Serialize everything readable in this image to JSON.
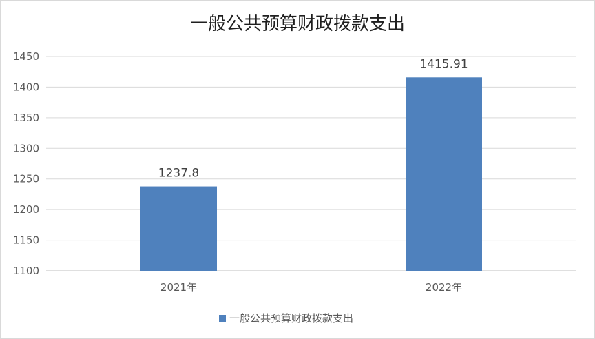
{
  "chart_data": {
    "type": "bar",
    "title": "一般公共预算财政拨款支出",
    "categories": [
      "2021年",
      "2022年"
    ],
    "series": [
      {
        "name": "一般公共预算财政拨款支出",
        "values": [
          1237.8,
          1415.91
        ],
        "data_labels": [
          "1237.8",
          "1415.91"
        ],
        "color": "#4f81bd"
      }
    ],
    "ylim": [
      1100,
      1450
    ],
    "yticks": [
      1100,
      1150,
      1200,
      1250,
      1300,
      1350,
      1400,
      1450
    ],
    "grid": true,
    "legend_position": "bottom",
    "xlabel": "",
    "ylabel": ""
  }
}
